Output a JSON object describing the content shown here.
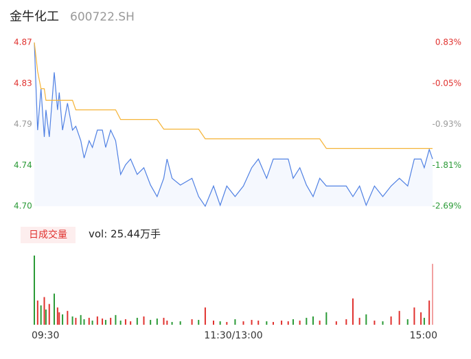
{
  "header": {
    "title": "金牛化工",
    "code": "600722.SH"
  },
  "volume_panel": {
    "button": "日成交量",
    "summary": "vol: 25.44万手"
  },
  "chart_data": {
    "type": "line",
    "x": [
      0,
      2,
      4,
      6,
      7,
      9,
      12,
      14,
      15,
      17,
      20,
      23,
      25,
      28,
      30,
      33,
      35,
      38,
      41,
      43,
      46,
      49,
      52,
      55,
      58,
      62,
      66,
      70,
      74,
      78,
      80,
      83,
      88,
      95,
      99,
      103,
      108,
      112,
      116,
      121,
      126,
      131,
      135,
      140,
      144,
      149,
      153,
      156,
      160,
      164,
      168,
      172,
      176,
      182,
      188,
      192,
      196,
      200,
      205,
      210,
      215,
      220,
      225,
      229,
      233,
      235,
      238,
      240
    ],
    "xlim": [
      0,
      240
    ],
    "xticks": [
      {
        "value": 0,
        "label": "09:30"
      },
      {
        "value": 120,
        "label": "11:30/13:00"
      },
      {
        "value": 240,
        "label": "15:00"
      }
    ],
    "ylim": [
      4.7,
      4.87
    ],
    "yticks": [
      {
        "value": 4.87,
        "label": "4.87"
      },
      {
        "value": 4.8275,
        "label": "4.83"
      },
      {
        "value": 4.785,
        "label": "4.79"
      },
      {
        "value": 4.7425,
        "label": "4.74"
      },
      {
        "value": 4.7,
        "label": "4.70"
      }
    ],
    "y2lim": [
      -2.69,
      0.83
    ],
    "y2ticks": [
      {
        "value": 0.83,
        "label": "0.83%"
      },
      {
        "value": -0.05,
        "label": "-0.05%"
      },
      {
        "value": -0.93,
        "label": "-0.93%"
      },
      {
        "value": -1.81,
        "label": "-1.81%"
      },
      {
        "value": -2.69,
        "label": "-2.69%"
      }
    ],
    "tick_colors": [
      "#e0312e",
      "#e0312e",
      "#999999",
      "#2a9a36",
      "#2a9a36"
    ],
    "series": [
      {
        "color": "#4f80e3",
        "values": [
          4.87,
          4.779,
          4.822,
          4.772,
          4.8,
          4.772,
          4.839,
          4.8,
          4.818,
          4.779,
          4.807,
          4.779,
          4.783,
          4.768,
          4.75,
          4.768,
          4.761,
          4.779,
          4.779,
          4.761,
          4.779,
          4.768,
          4.733,
          4.743,
          4.749,
          4.733,
          4.74,
          4.722,
          4.71,
          4.729,
          4.749,
          4.729,
          4.722,
          4.729,
          4.71,
          4.7,
          4.721,
          4.701,
          4.721,
          4.71,
          4.721,
          4.74,
          4.749,
          4.729,
          4.749,
          4.749,
          4.749,
          4.729,
          4.74,
          4.722,
          4.71,
          4.729,
          4.721,
          4.721,
          4.721,
          4.71,
          4.721,
          4.701,
          4.721,
          4.71,
          4.721,
          4.729,
          4.721,
          4.749,
          4.749,
          4.74,
          4.759,
          4.749
        ]
      },
      {
        "color": "#f5b335",
        "values": [
          4.87,
          4.84,
          4.822,
          4.822,
          4.81,
          4.81,
          4.81,
          4.81,
          4.81,
          4.81,
          4.81,
          4.81,
          4.8,
          4.8,
          4.8,
          4.8,
          4.8,
          4.8,
          4.8,
          4.8,
          4.8,
          4.8,
          4.79,
          4.79,
          4.79,
          4.79,
          4.79,
          4.79,
          4.79,
          4.78,
          4.78,
          4.78,
          4.78,
          4.78,
          4.78,
          4.77,
          4.77,
          4.77,
          4.77,
          4.77,
          4.77,
          4.77,
          4.77,
          4.77,
          4.77,
          4.77,
          4.77,
          4.77,
          4.77,
          4.77,
          4.77,
          4.77,
          4.76,
          4.76,
          4.76,
          4.76,
          4.76,
          4.76,
          4.76,
          4.76,
          4.76,
          4.76,
          4.76,
          4.76,
          4.76,
          4.76,
          4.76,
          4.76
        ]
      }
    ],
    "volume": [
      100,
      35,
      28,
      40,
      22,
      30,
      45,
      25,
      18,
      15,
      20,
      12,
      10,
      14,
      8,
      10,
      6,
      12,
      9,
      7,
      10,
      14,
      6,
      8,
      5,
      10,
      12,
      7,
      9,
      10,
      6,
      4,
      5,
      8,
      7,
      25,
      6,
      5,
      4,
      8,
      5,
      7,
      6,
      5,
      4,
      6,
      5,
      8,
      6,
      10,
      12,
      6,
      18,
      5,
      8,
      38,
      10,
      15,
      6,
      5,
      12,
      20,
      8,
      25,
      18,
      10,
      35,
      88
    ],
    "volume_colors": [
      "#2a9a36",
      "#e0312e",
      "#2a9a36",
      "#e0312e",
      "#2a9a36",
      "#e0312e",
      "#2a9a36",
      "#e0312e",
      "#e0312e",
      "#2a9a36",
      "#e0312e",
      "#2a9a36",
      "#e0312e",
      "#2a9a36",
      "#2a9a36",
      "#e0312e",
      "#2a9a36",
      "#e0312e",
      "#e0312e",
      "#2a9a36",
      "#e0312e",
      "#2a9a36",
      "#2a9a36",
      "#e0312e",
      "#e0312e",
      "#2a9a36",
      "#e0312e",
      "#2a9a36",
      "#2a9a36",
      "#e0312e",
      "#e0312e",
      "#2a9a36",
      "#2a9a36",
      "#e0312e",
      "#2a9a36",
      "#e0312e",
      "#e0312e",
      "#2a9a36",
      "#e0312e",
      "#2a9a36",
      "#e0312e",
      "#e0312e",
      "#e0312e",
      "#2a9a36",
      "#e0312e",
      "#e0312e",
      "#e0312e",
      "#2a9a36",
      "#e0312e",
      "#2a9a36",
      "#2a9a36",
      "#e0312e",
      "#2a9a36",
      "#e0312e",
      "#e0312e",
      "#e0312e",
      "#e0312e",
      "#2a9a36",
      "#e0312e",
      "#2a9a36",
      "#e0312e",
      "#e0312e",
      "#2a9a36",
      "#e0312e",
      "#e0312e",
      "#2a9a36",
      "#e0312e",
      "#f2a0a0"
    ]
  }
}
